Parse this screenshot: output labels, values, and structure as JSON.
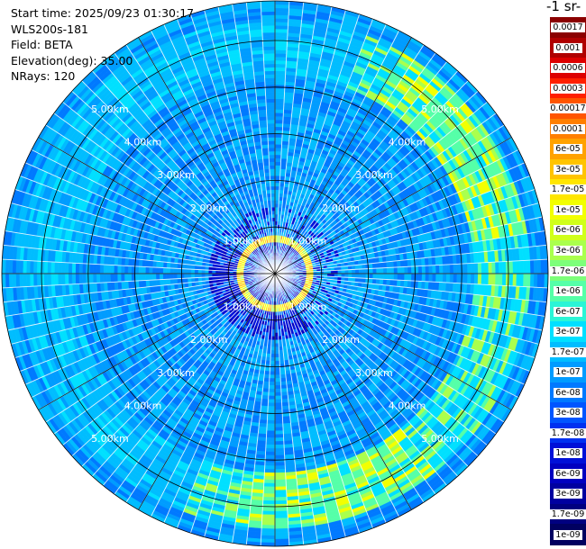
{
  "header": {
    "start_time": "Start time: 2025/09/23 01:30:17",
    "instrument": "WLS200s-181",
    "field": "Field: BETA",
    "elevation": "Elevation(deg): 35.00",
    "nrays": "NRays: 120"
  },
  "colorbar": {
    "title": "-1 sr-",
    "labels": [
      "0.0017",
      "0.001",
      "0.0006",
      "0.0003",
      "0.00017",
      "0.0001",
      "6e-05",
      "3e-05",
      "1.7e-05",
      "1e-05",
      "6e-06",
      "3e-06",
      "1.7e-06",
      "1e-06",
      "6e-07",
      "3e-07",
      "1.7e-07",
      "1e-07",
      "6e-08",
      "3e-08",
      "1.7e-08",
      "1e-08",
      "6e-09",
      "3e-09",
      "1.7e-09",
      "1e-09"
    ],
    "colors": [
      "#8b0000",
      "#b00000",
      "#dd0000",
      "#ff2000",
      "#ff5500",
      "#ff7f00",
      "#ffa200",
      "#ffc400",
      "#ffe600",
      "#f2ff00",
      "#d0ff1a",
      "#aaff4d",
      "#7dff7a",
      "#55ffa8",
      "#2bf5d6",
      "#00e0ff",
      "#00bdff",
      "#009cff",
      "#0079ff",
      "#0055ff",
      "#0030f0",
      "#0010d8",
      "#0000c0",
      "#0000a0",
      "#000080",
      "#000060"
    ]
  },
  "chart_data": {
    "type": "heatmap",
    "projection": "polar PPI",
    "field": "BETA",
    "elevation_deg": 35.0,
    "n_rays": 120,
    "range_rings_km": [
      1,
      2,
      3,
      4,
      5
    ],
    "ring_labels": [
      "1.00km",
      "2.00km",
      "3.00km",
      "4.00km",
      "5.00km"
    ],
    "max_range_km": 5.85,
    "scale": "log",
    "value_range": [
      1e-09,
      0.0017
    ],
    "features": [
      {
        "name": "near-range high backscatter ring",
        "range_km": [
          0.65,
          0.8
        ],
        "level": "1e-05 to 3e-05"
      },
      {
        "name": "elevated aerosol band",
        "range_km": [
          4.3,
          5.5
        ],
        "level": "1.7e-06 to 1e-05"
      },
      {
        "name": "background",
        "level": "1e-08 to 1.7e-07"
      }
    ]
  }
}
